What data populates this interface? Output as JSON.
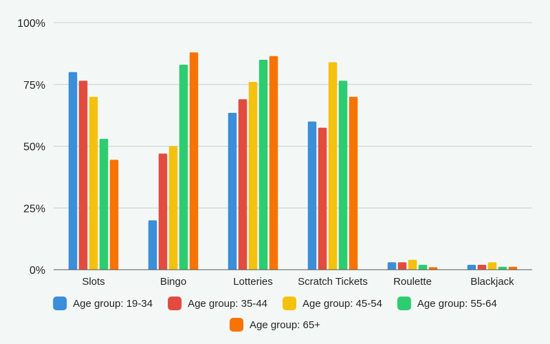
{
  "chart_data": {
    "type": "bar",
    "categories": [
      "Slots",
      "Bingo",
      "Lotteries",
      "Scratch Tickets",
      "Roulette",
      "Blackjack"
    ],
    "series": [
      {
        "name": "Age group: 19-34",
        "color": "#3b8ed8",
        "values": [
          80,
          20,
          63.5,
          60,
          3,
          2
        ]
      },
      {
        "name": "Age group: 35-44",
        "color": "#e24b3f",
        "values": [
          76.5,
          47,
          69,
          57.5,
          3,
          2
        ]
      },
      {
        "name": "Age group: 45-54",
        "color": "#f4c10f",
        "values": [
          70,
          50,
          76,
          84,
          4,
          3
        ]
      },
      {
        "name": "Age group: 55-64",
        "color": "#2ecc71",
        "values": [
          53,
          83,
          85,
          76.5,
          2,
          1.2
        ]
      },
      {
        "name": "Age group: 65+",
        "color": "#f77304",
        "values": [
          44.5,
          88,
          86.5,
          70,
          1,
          1.2
        ]
      }
    ],
    "y_ticks": [
      "0%",
      "25%",
      "50%",
      "75%",
      "100%"
    ],
    "ylim": [
      0,
      100
    ],
    "grid": true,
    "legend_position": "bottom"
  }
}
